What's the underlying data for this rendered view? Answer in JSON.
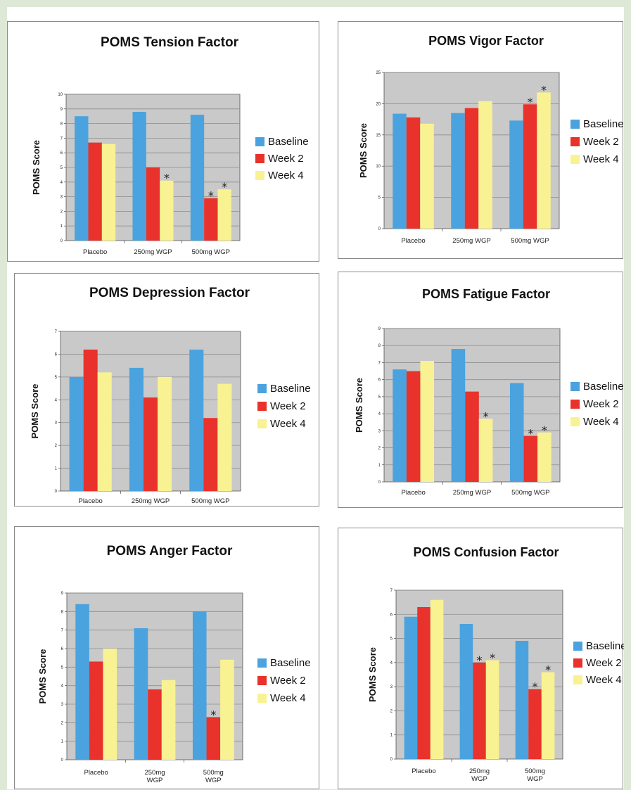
{
  "colors": {
    "baseline": "#4aa3de",
    "week2": "#e8322b",
    "week4": "#f9f292",
    "plot_bg": "#c9c9c9",
    "grid": "#8e8e8e"
  },
  "chart_data": [
    {
      "type": "bar",
      "title": "POMS Tension Factor",
      "ylabel": "POMS Score",
      "ylim": [
        0,
        10
      ],
      "yticks": [
        "0",
        "1",
        "2",
        "3",
        "4",
        "5",
        "6",
        "7",
        "8",
        "9",
        "10"
      ],
      "categories": [
        [
          "Placebo"
        ],
        [
          "250mg WGP"
        ],
        [
          "500mg WGP"
        ]
      ],
      "legend": {
        "position": "right",
        "entries": [
          "Baseline",
          "Week 2",
          "Week 4"
        ]
      },
      "series": [
        {
          "name": "Baseline",
          "values": [
            8.5,
            8.8,
            8.6
          ]
        },
        {
          "name": "Week 2",
          "values": [
            6.7,
            5.0,
            2.9
          ]
        },
        {
          "name": "Week 4",
          "values": [
            6.6,
            4.1,
            3.5
          ]
        }
      ],
      "annotations": [
        {
          "text": "*",
          "category": 1,
          "series": 2
        },
        {
          "text": "*",
          "category": 2,
          "series": 1
        },
        {
          "text": "*",
          "category": 2,
          "series": 2
        }
      ]
    },
    {
      "type": "bar",
      "title": "POMS Vigor Factor",
      "ylabel": "POMS Score",
      "ylim": [
        0,
        25
      ],
      "yticks": [
        "0",
        "5",
        "10",
        "15",
        "20",
        "25"
      ],
      "categories": [
        [
          "Placebo"
        ],
        [
          "250mg WGP"
        ],
        [
          "500mg WGP"
        ]
      ],
      "legend": {
        "position": "right",
        "entries": [
          "Baseline",
          "Week 2",
          "Week 4"
        ]
      },
      "series": [
        {
          "name": "Baseline",
          "values": [
            18.4,
            18.5,
            17.3
          ]
        },
        {
          "name": "Week 2",
          "values": [
            17.8,
            19.3,
            19.9
          ]
        },
        {
          "name": "Week 4",
          "values": [
            16.8,
            20.4,
            21.8
          ]
        }
      ],
      "annotations": [
        {
          "text": "*",
          "category": 2,
          "series": 1
        },
        {
          "text": "*",
          "category": 2,
          "series": 2
        }
      ]
    },
    {
      "type": "bar",
      "title": "POMS Depression Factor",
      "ylabel": "POMS Score",
      "ylim": [
        0,
        7
      ],
      "yticks": [
        "0",
        "1",
        "2",
        "3",
        "4",
        "5",
        "6",
        "7"
      ],
      "categories": [
        [
          "Placebo"
        ],
        [
          "250mg WGP"
        ],
        [
          "500mg WGP"
        ]
      ],
      "legend": {
        "position": "right",
        "entries": [
          "Baseline",
          "Week 2",
          "Week 4"
        ]
      },
      "series": [
        {
          "name": "Baseline",
          "values": [
            5.0,
            5.4,
            6.2
          ]
        },
        {
          "name": "Week 2",
          "values": [
            6.2,
            4.1,
            3.2
          ]
        },
        {
          "name": "Week 4",
          "values": [
            5.2,
            5.0,
            4.7
          ]
        }
      ],
      "annotations": []
    },
    {
      "type": "bar",
      "title": "POMS Fatigue Factor",
      "ylabel": "POMS Score",
      "ylim": [
        0,
        9
      ],
      "yticks": [
        "0",
        "1",
        "2",
        "3",
        "4",
        "5",
        "6",
        "7",
        "8",
        "9"
      ],
      "categories": [
        [
          "Placebo"
        ],
        [
          "250mg WGP"
        ],
        [
          "500mg WGP"
        ]
      ],
      "legend": {
        "position": "right",
        "entries": [
          "Baseline",
          "Week 2",
          "Week 4"
        ]
      },
      "series": [
        {
          "name": "Baseline",
          "values": [
            6.6,
            7.8,
            5.8
          ]
        },
        {
          "name": "Week 2",
          "values": [
            6.5,
            5.3,
            2.7
          ]
        },
        {
          "name": "Week 4",
          "values": [
            7.1,
            3.7,
            2.9
          ]
        }
      ],
      "annotations": [
        {
          "text": "*",
          "category": 1,
          "series": 2
        },
        {
          "text": "*",
          "category": 2,
          "series": 1
        },
        {
          "text": "*",
          "category": 2,
          "series": 2
        }
      ]
    },
    {
      "type": "bar",
      "title": "POMS Anger Factor",
      "ylabel": "POMS Score",
      "ylim": [
        0,
        9
      ],
      "yticks": [
        "0",
        "1",
        "2",
        "3",
        "4",
        "5",
        "6",
        "7",
        "8",
        "9"
      ],
      "categories": [
        [
          "Placebo"
        ],
        [
          "250mg",
          "WGP"
        ],
        [
          "500mg",
          "WGP"
        ]
      ],
      "legend": {
        "position": "right",
        "entries": [
          "Baseline",
          "Week 2",
          "Week 4"
        ]
      },
      "series": [
        {
          "name": "Baseline",
          "values": [
            8.4,
            7.1,
            8.0
          ]
        },
        {
          "name": "Week 2",
          "values": [
            5.3,
            3.8,
            2.3
          ]
        },
        {
          "name": "Week 4",
          "values": [
            6.0,
            4.3,
            5.4
          ]
        }
      ],
      "annotations": [
        {
          "text": "*",
          "category": 2,
          "series": 1
        }
      ]
    },
    {
      "type": "bar",
      "title": "POMS Confusion Factor",
      "ylabel": "POMS Score",
      "ylim": [
        0,
        7
      ],
      "yticks": [
        "0",
        "1",
        "2",
        "3",
        "4",
        "5",
        "6",
        "7"
      ],
      "categories": [
        [
          "Placebo"
        ],
        [
          "250mg",
          "WGP"
        ],
        [
          "500mg",
          "WGP"
        ]
      ],
      "legend": {
        "position": "right",
        "entries": [
          "Baseline",
          "Week 2",
          "Week 4"
        ]
      },
      "series": [
        {
          "name": "Baseline",
          "values": [
            5.9,
            5.6,
            4.9
          ]
        },
        {
          "name": "Week 2",
          "values": [
            6.3,
            4.0,
            2.9
          ]
        },
        {
          "name": "Week 4",
          "values": [
            6.6,
            4.1,
            3.6
          ]
        }
      ],
      "annotations": [
        {
          "text": "*",
          "category": 1,
          "series": 1
        },
        {
          "text": "*",
          "category": 1,
          "series": 2
        },
        {
          "text": "*",
          "category": 2,
          "series": 1
        },
        {
          "text": "*",
          "category": 2,
          "series": 2
        }
      ]
    }
  ]
}
